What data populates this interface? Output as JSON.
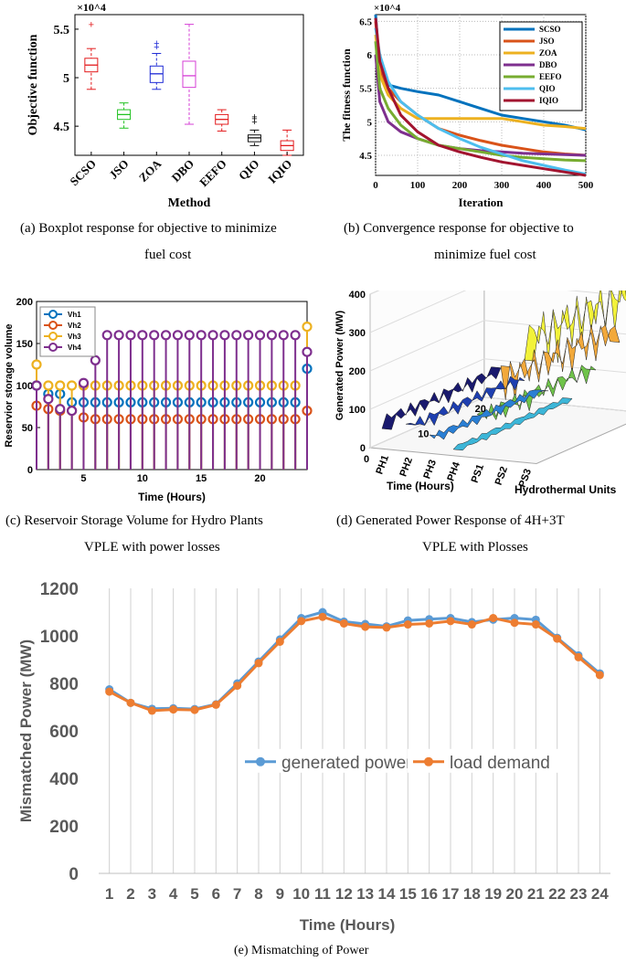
{
  "captions": {
    "a_line1": "(a)  Boxplot response for objective to minimize",
    "a_line2": "fuel cost",
    "b_line1": "(b)   Convergence response for objective to",
    "b_line2": "minimize fuel cost",
    "c_line1": "(c)  Reservoir Storage Volume for Hydro Plants",
    "c_line2": "VPLE with power losses",
    "d_line1": "(d)   Generated Power Response of 4H+3T",
    "d_line2": "VPLE with Plosses",
    "e_line1": "(e) Mismatching of Power"
  },
  "colors": {
    "SCSO": "#0072bd",
    "JSO": "#d95319",
    "ZOA": "#edb120",
    "DBO": "#7e2f8e",
    "EEFO": "#77ac30",
    "QIO": "#4dbeee",
    "IQIO": "#a2142f",
    "box_SCSO": "#e31a1c",
    "box_JSO": "#22c222",
    "box_ZOA": "#1f2bd6",
    "box_DBO": "#d63fd6",
    "box_EEFO": "#e31a1c",
    "box_QIO": "#111111",
    "box_IQIO": "#e31a1c",
    "gen": "#5b9bd5",
    "load": "#ed7d31"
  },
  "chart_data": [
    {
      "type": "boxplot",
      "id": "a",
      "exponent_label": "×10^4",
      "ylabel": "Objective function",
      "xlabel": "Method",
      "ylim": [
        4.2,
        5.65
      ],
      "yticks": [
        "4.5",
        "5",
        "5.5"
      ],
      "ytick_values": [
        4.5,
        5.0,
        5.5
      ],
      "categories": [
        "SCSO",
        "JSO",
        "ZOA",
        "DBO",
        "EEFO",
        "QIO",
        "IQIO"
      ],
      "boxes": [
        {
          "min": 4.88,
          "q1": 5.06,
          "median": 5.13,
          "q3": 5.2,
          "max": 5.3,
          "outliers": [
            5.55
          ]
        },
        {
          "min": 4.48,
          "q1": 4.57,
          "median": 4.62,
          "q3": 4.67,
          "max": 4.74,
          "outliers": []
        },
        {
          "min": 4.88,
          "q1": 4.95,
          "median": 5.04,
          "q3": 5.12,
          "max": 5.25,
          "outliers": [
            5.32,
            5.36
          ]
        },
        {
          "min": 4.52,
          "q1": 4.9,
          "median": 5.02,
          "q3": 5.17,
          "max": 5.55,
          "outliers": []
        },
        {
          "min": 4.45,
          "q1": 4.52,
          "median": 4.57,
          "q3": 4.62,
          "max": 4.67,
          "outliers": []
        },
        {
          "min": 4.3,
          "q1": 4.34,
          "median": 4.38,
          "q3": 4.41,
          "max": 4.46,
          "outliers": [
            4.55,
            4.58,
            4.6
          ]
        },
        {
          "min": 4.2,
          "q1": 4.25,
          "median": 4.3,
          "q3": 4.35,
          "max": 4.46,
          "outliers": []
        }
      ]
    },
    {
      "type": "line",
      "id": "b",
      "exponent_label": "×10^4",
      "ylabel": "The fitness function",
      "xlabel": "Iteration",
      "xlim": [
        0,
        500
      ],
      "ylim": [
        4.2,
        6.6
      ],
      "xticks": [
        "0",
        "100",
        "200",
        "300",
        "400",
        "500"
      ],
      "xtick_values": [
        0,
        100,
        200,
        300,
        400,
        500
      ],
      "yticks": [
        "4.5",
        "5",
        "5.5",
        "6",
        "6.5"
      ],
      "ytick_values": [
        4.5,
        5.0,
        5.5,
        6.0,
        6.5
      ],
      "series": [
        {
          "name": "SCSO",
          "x": [
            0,
            10,
            30,
            60,
            100,
            150,
            200,
            250,
            300,
            350,
            400,
            450,
            500
          ],
          "y": [
            6.6,
            5.75,
            5.55,
            5.5,
            5.45,
            5.4,
            5.3,
            5.2,
            5.1,
            5.05,
            5.0,
            4.95,
            4.88
          ]
        },
        {
          "name": "JSO",
          "x": [
            0,
            10,
            30,
            60,
            100,
            150,
            200,
            250,
            300,
            350,
            400,
            450,
            500
          ],
          "y": [
            6.5,
            5.8,
            5.5,
            5.3,
            5.1,
            4.9,
            4.8,
            4.72,
            4.65,
            4.6,
            4.55,
            4.52,
            4.5
          ]
        },
        {
          "name": "ZOA",
          "x": [
            0,
            10,
            30,
            60,
            100,
            150,
            200,
            250,
            300,
            350,
            400,
            450,
            500
          ],
          "y": [
            6.3,
            5.7,
            5.4,
            5.2,
            5.05,
            5.05,
            5.05,
            5.05,
            5.05,
            5.0,
            4.95,
            4.93,
            4.9
          ]
        },
        {
          "name": "DBO",
          "x": [
            0,
            10,
            30,
            60,
            100,
            150,
            200,
            250,
            300,
            350,
            400,
            450,
            500
          ],
          "y": [
            6.0,
            5.3,
            5.0,
            4.85,
            4.75,
            4.65,
            4.6,
            4.57,
            4.55,
            4.53,
            4.52,
            4.51,
            4.5
          ]
        },
        {
          "name": "EEFO",
          "x": [
            0,
            10,
            30,
            60,
            100,
            150,
            200,
            250,
            300,
            350,
            400,
            450,
            500
          ],
          "y": [
            6.2,
            5.5,
            5.2,
            4.95,
            4.75,
            4.65,
            4.6,
            4.55,
            4.5,
            4.47,
            4.45,
            4.43,
            4.42
          ]
        },
        {
          "name": "QIO",
          "x": [
            0,
            10,
            30,
            60,
            100,
            150,
            200,
            250,
            300,
            350,
            400,
            450,
            500
          ],
          "y": [
            6.4,
            6.0,
            5.6,
            5.3,
            5.1,
            4.9,
            4.75,
            4.62,
            4.52,
            4.42,
            4.35,
            4.28,
            4.22
          ]
        },
        {
          "name": "IQIO",
          "x": [
            0,
            10,
            30,
            60,
            100,
            150,
            200,
            250,
            300,
            350,
            400,
            450,
            500
          ],
          "y": [
            6.55,
            5.9,
            5.5,
            5.1,
            4.85,
            4.65,
            4.55,
            4.47,
            4.4,
            4.35,
            4.3,
            4.25,
            4.2
          ]
        }
      ]
    },
    {
      "type": "stem",
      "id": "c",
      "ylabel": "Reservior storage volume",
      "xlabel": "Time (Hours)",
      "xlim": [
        1,
        24
      ],
      "ylim": [
        0,
        200
      ],
      "xticks": [
        "5",
        "10",
        "15",
        "20"
      ],
      "xtick_values": [
        5,
        10,
        15,
        20
      ],
      "yticks": [
        "0",
        "50",
        "100",
        "150",
        "200"
      ],
      "ytick_values": [
        0,
        50,
        100,
        150,
        200
      ],
      "series": [
        {
          "name": "Vh1",
          "y": [
            100,
            90,
            90,
            80,
            80,
            80,
            80,
            80,
            80,
            80,
            80,
            80,
            80,
            80,
            80,
            80,
            80,
            80,
            80,
            80,
            80,
            80,
            80,
            120
          ]
        },
        {
          "name": "Vh2",
          "y": [
            76,
            72,
            70,
            70,
            62,
            60,
            60,
            60,
            60,
            60,
            60,
            60,
            60,
            60,
            60,
            60,
            60,
            60,
            60,
            60,
            60,
            60,
            60,
            70
          ]
        },
        {
          "name": "Vh3",
          "y": [
            125,
            100,
            100,
            100,
            100,
            100,
            100,
            100,
            100,
            100,
            100,
            100,
            100,
            100,
            100,
            100,
            100,
            100,
            100,
            100,
            100,
            100,
            100,
            170
          ]
        },
        {
          "name": "Vh4",
          "y": [
            100,
            84,
            72,
            70,
            103,
            130,
            160,
            160,
            160,
            160,
            160,
            160,
            160,
            160,
            160,
            160,
            160,
            160,
            160,
            160,
            160,
            160,
            160,
            140
          ]
        }
      ]
    },
    {
      "type": "3d-ribbon",
      "id": "d",
      "zlabel": "Generated Power (MW)",
      "xlabel": "Time (Hours)",
      "ylabel": "Hydrothermal Units",
      "zticks": [
        "0",
        "100",
        "200",
        "300",
        "400"
      ],
      "ztick_values": [
        0,
        100,
        200,
        300,
        400
      ],
      "time_ticks": [
        "20",
        "10",
        "0"
      ],
      "units": [
        "PH1",
        "PH2",
        "PH3",
        "PH4",
        "PS1",
        "PS2",
        "PS3"
      ],
      "series": [
        {
          "name": "PH1",
          "level": 70
        },
        {
          "name": "PH2",
          "level": 60
        },
        {
          "name": "PH3",
          "level": 40
        },
        {
          "name": "PH4",
          "level": 20
        },
        {
          "name": "PS1",
          "level": 100
        },
        {
          "name": "PS2",
          "level": 200
        },
        {
          "name": "PS3",
          "level": 300
        }
      ]
    },
    {
      "type": "line",
      "id": "e",
      "ylabel": "Mismatched Power (MW)",
      "xlabel": "Time (Hours)",
      "ylim": [
        0,
        1200
      ],
      "yticks": [
        "0",
        "200",
        "400",
        "600",
        "800",
        "1000",
        "1200"
      ],
      "ytick_values": [
        0,
        200,
        400,
        600,
        800,
        1000,
        1200
      ],
      "categories": [
        "1",
        "2",
        "3",
        "4",
        "5",
        "6",
        "7",
        "8",
        "9",
        "10",
        "11",
        "12",
        "13",
        "14",
        "15",
        "16",
        "17",
        "18",
        "19",
        "20",
        "21",
        "22",
        "23",
        "24"
      ],
      "series": [
        {
          "name": "generated power",
          "values": [
            775,
            718,
            693,
            695,
            692,
            712,
            800,
            892,
            985,
            1075,
            1100,
            1060,
            1050,
            1040,
            1065,
            1070,
            1075,
            1058,
            1068,
            1075,
            1068,
            992,
            918,
            842
          ]
        },
        {
          "name": "load demand",
          "values": [
            765,
            718,
            685,
            690,
            688,
            710,
            790,
            885,
            975,
            1062,
            1080,
            1052,
            1038,
            1035,
            1048,
            1052,
            1062,
            1048,
            1075,
            1055,
            1048,
            988,
            910,
            835
          ]
        }
      ]
    }
  ]
}
